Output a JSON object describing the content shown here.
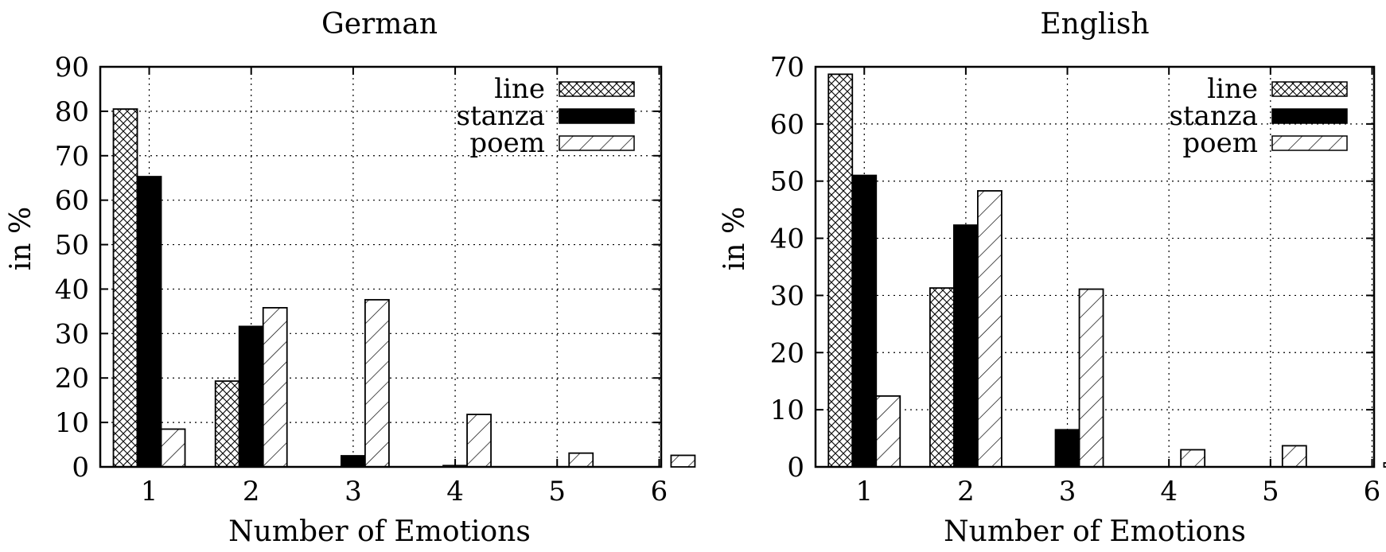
{
  "chart_data": [
    {
      "type": "bar",
      "title": "German",
      "xlabel": "Number of Emotions",
      "ylabel": "in %",
      "categories": [
        "1",
        "2",
        "3",
        "4",
        "5",
        "6"
      ],
      "ylim": [
        0,
        90
      ],
      "yticks": [
        "0",
        "10",
        "20",
        "30",
        "40",
        "50",
        "60",
        "70",
        "80",
        "90"
      ],
      "grid": true,
      "legend_position": "top-right",
      "series": [
        {
          "name": "line",
          "pattern": "crosshatch",
          "values": [
            80.5,
            19.3,
            0,
            0,
            0,
            0
          ]
        },
        {
          "name": "stanza",
          "pattern": "solid",
          "values": [
            65.3,
            31.6,
            2.5,
            0.3,
            0,
            0
          ]
        },
        {
          "name": "poem",
          "pattern": "diagonal",
          "values": [
            8.5,
            35.8,
            37.6,
            11.8,
            3.1,
            2.6
          ]
        }
      ]
    },
    {
      "type": "bar",
      "title": "English",
      "xlabel": "Number of Emotions",
      "ylabel": "in %",
      "categories": [
        "1",
        "2",
        "3",
        "4",
        "5",
        "6"
      ],
      "ylim": [
        0,
        70
      ],
      "yticks": [
        "0",
        "10",
        "20",
        "30",
        "40",
        "50",
        "60",
        "70"
      ],
      "grid": true,
      "legend_position": "top-right",
      "series": [
        {
          "name": "line",
          "pattern": "crosshatch",
          "values": [
            68.7,
            31.3,
            0,
            0,
            0,
            0
          ]
        },
        {
          "name": "stanza",
          "pattern": "solid",
          "values": [
            51.0,
            42.3,
            6.5,
            0,
            0,
            0
          ]
        },
        {
          "name": "poem",
          "pattern": "diagonal",
          "values": [
            12.4,
            48.3,
            31.1,
            3.0,
            3.7,
            0.7
          ]
        }
      ]
    }
  ],
  "colors": {
    "bar_fill": "#000000",
    "background": "#ffffff",
    "grid": "#000000"
  }
}
